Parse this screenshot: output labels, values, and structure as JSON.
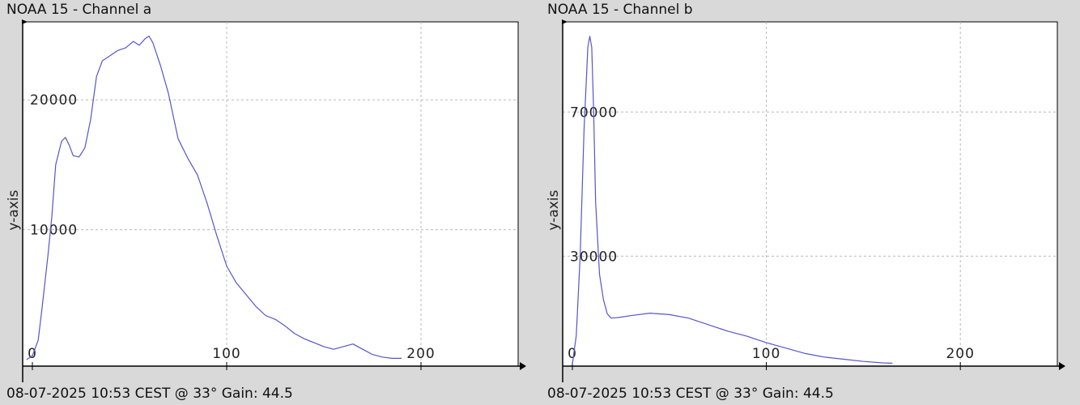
{
  "chart_data": [
    {
      "type": "line",
      "title": "NOAA 15 - Channel a",
      "footer": "08-07-2025 10:53 CEST @ 33° Gain: 44.5",
      "ylabel": "y-axis",
      "xlim": [
        -5,
        250
      ],
      "ylim": [
        -500,
        26000
      ],
      "xticks": [
        0,
        100,
        200
      ],
      "yticks": [
        10000,
        20000
      ],
      "grid": true,
      "color": "#5555cc",
      "series": [
        {
          "x": [
            -3,
            0,
            3,
            5,
            8,
            10,
            12,
            15,
            17,
            19,
            21,
            24,
            27,
            30,
            33,
            36,
            40,
            44,
            48,
            52,
            55,
            58,
            60,
            62,
            64,
            66,
            70,
            75,
            80,
            85,
            90,
            95,
            100,
            105,
            110,
            115,
            120,
            125,
            130,
            135,
            140,
            145,
            150,
            155,
            160,
            165,
            170,
            175,
            180,
            185,
            190
          ],
          "y": [
            0,
            300,
            1500,
            4000,
            8000,
            11000,
            15000,
            16800,
            17100,
            16500,
            15700,
            15600,
            16300,
            18500,
            21800,
            23000,
            23400,
            23800,
            24000,
            24500,
            24200,
            24700,
            24900,
            24400,
            23500,
            22600,
            20500,
            17000,
            15500,
            14200,
            12000,
            9500,
            7200,
            5900,
            5000,
            4100,
            3400,
            3100,
            2600,
            2000,
            1600,
            1300,
            1000,
            800,
            1000,
            1200,
            800,
            400,
            200,
            100,
            100
          ]
        }
      ]
    },
    {
      "type": "line",
      "title": "NOAA 15 - Channel b",
      "footer": "08-07-2025 10:53 CEST @ 33° Gain: 44.5",
      "ylabel": "y-axis",
      "xlim": [
        -5,
        250
      ],
      "ylim": [
        -500,
        95000
      ],
      "xticks": [
        0,
        100,
        200
      ],
      "yticks": [
        30000,
        70000
      ],
      "grid": true,
      "color": "#5555cc",
      "series": [
        {
          "x": [
            0,
            2,
            4,
            6,
            8,
            9,
            10,
            11,
            12,
            14,
            16,
            18,
            20,
            24,
            30,
            40,
            50,
            60,
            70,
            80,
            90,
            100,
            110,
            120,
            130,
            140,
            150,
            160,
            165
          ],
          "y": [
            0,
            8000,
            30000,
            65000,
            88000,
            91000,
            88000,
            70000,
            45000,
            25000,
            18000,
            14000,
            12800,
            13000,
            13500,
            14200,
            13800,
            12800,
            11000,
            9200,
            7800,
            6000,
            4500,
            3000,
            2000,
            1400,
            800,
            400,
            300
          ]
        }
      ]
    }
  ]
}
